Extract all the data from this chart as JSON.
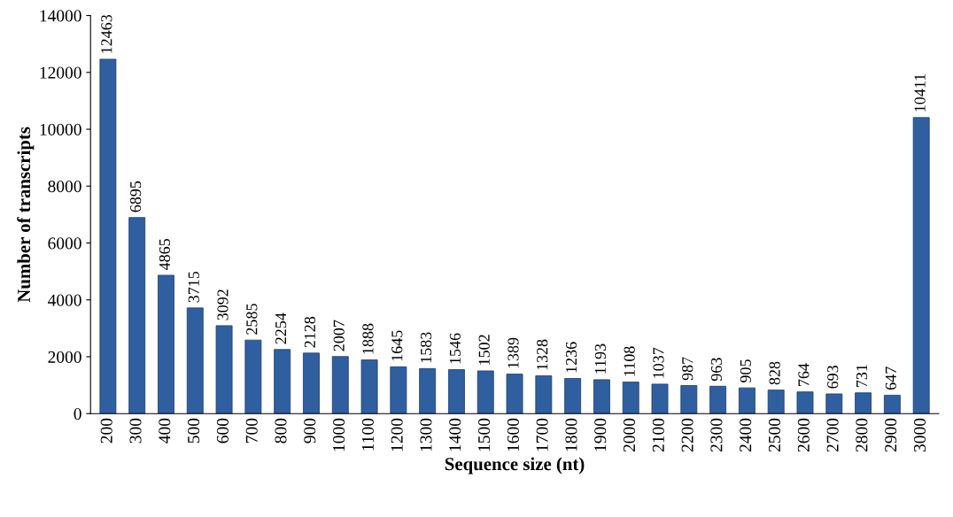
{
  "chart_data": {
    "type": "bar",
    "xlabel": "Sequence size (nt)",
    "ylabel": "Number of transcripts",
    "categories": [
      "200",
      "300",
      "400",
      "500",
      "600",
      "700",
      "800",
      "900",
      "1000",
      "1100",
      "1200",
      "1300",
      "1400",
      "1500",
      "1600",
      "1700",
      "1800",
      "1900",
      "2000",
      "2100",
      "2200",
      "2300",
      "2400",
      "2500",
      "2600",
      "2700",
      "2800",
      "2900",
      "3000"
    ],
    "values": [
      12463,
      6895,
      4865,
      3715,
      3092,
      2585,
      2254,
      2128,
      2007,
      1888,
      1645,
      1583,
      1546,
      1502,
      1389,
      1328,
      1236,
      1193,
      1108,
      1037,
      987,
      963,
      905,
      828,
      764,
      693,
      731,
      647,
      10411
    ],
    "color": "#2f5f9f",
    "ylim": [
      0,
      14000
    ],
    "yticks": [
      0,
      2000,
      4000,
      6000,
      8000,
      10000,
      12000,
      14000
    ],
    "grid": false,
    "legend": false,
    "data_labels": true
  }
}
